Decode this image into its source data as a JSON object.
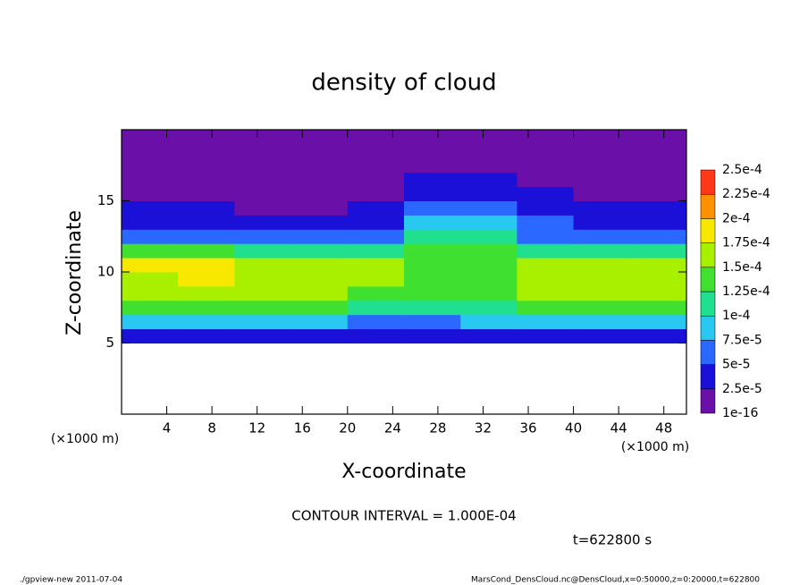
{
  "chart_data": {
    "type": "contour",
    "title": "density of cloud",
    "x_label": "X-coordinate",
    "y_label": "Z-coordinate",
    "x_unit": "(×1000 m)",
    "y_unit": "(×1000 m)",
    "annotation": "CONTOUR INTERVAL = 1.000E-04",
    "time_label": "t=622800 s",
    "footer_left": "./gpview-new  2011-07-04",
    "footer_right": "MarsCond_DensCloud.nc@DensCloud,x=0:50000,z=0:20000,t=622800",
    "xlim": [
      0,
      50
    ],
    "ylim": [
      0,
      20
    ],
    "xticks": [
      4,
      8,
      12,
      16,
      20,
      24,
      28,
      32,
      36,
      40,
      44,
      48
    ],
    "yticks": [
      5,
      10,
      15
    ],
    "x": [
      2.5,
      7.5,
      12.5,
      17.5,
      22.5,
      27.5,
      32.5,
      37.5,
      42.5,
      47.5
    ],
    "z": [
      5.5,
      6.5,
      7.5,
      8.5,
      9.5,
      10.5,
      11.5,
      12.5,
      13.5,
      14.5,
      15.5,
      16.5,
      17.5,
      18.5,
      19.5
    ],
    "values": [
      [
        4e-05,
        4e-05,
        4e-05,
        4e-05,
        3e-05,
        4e-05,
        4e-05,
        4e-05,
        4e-05,
        4e-05
      ],
      [
        8e-05,
        8e-05,
        8e-05,
        8e-05,
        6e-05,
        6e-05,
        8e-05,
        8e-05,
        8e-05,
        8e-05
      ],
      [
        0.00013,
        0.00013,
        0.00013,
        0.000125,
        0.00011,
        0.00012,
        0.00012,
        0.000125,
        0.00013,
        0.00013
      ],
      [
        0.00016,
        0.00016,
        0.000155,
        0.00015,
        0.00014,
        0.00014,
        0.00014,
        0.00015,
        0.00016,
        0.00016
      ],
      [
        0.00017,
        0.000175,
        0.00017,
        0.000155,
        0.00015,
        0.000135,
        0.00013,
        0.00015,
        0.00016,
        0.00016
      ],
      [
        0.000175,
        0.00018,
        0.00017,
        0.00016,
        0.00016,
        0.000135,
        0.00013,
        0.00015,
        0.00016,
        0.00016
      ],
      [
        0.00013,
        0.000135,
        0.00012,
        0.00011,
        0.00012,
        0.00013,
        0.00013,
        0.00012,
        0.00011,
        0.00011
      ],
      [
        5e-05,
        5e-05,
        5e-05,
        5e-05,
        6e-05,
        0.00011,
        0.00011,
        7e-05,
        6e-05,
        6e-05
      ],
      [
        3e-05,
        3e-05,
        3e-05,
        3e-05,
        4e-05,
        9e-05,
        9e-05,
        5e-05,
        4e-05,
        4e-05
      ],
      [
        2.5e-05,
        2.5e-05,
        2e-05,
        2e-05,
        3e-05,
        7e-05,
        7e-05,
        4e-05,
        3e-05,
        3e-05
      ],
      [
        2e-05,
        2e-05,
        2e-05,
        2e-05,
        2e-05,
        4e-05,
        4e-05,
        2.5e-05,
        2e-05,
        2e-05
      ],
      [
        1.5e-05,
        1.5e-05,
        1e-05,
        1e-05,
        1.5e-05,
        2.5e-05,
        2.5e-05,
        1.5e-05,
        1e-05,
        1e-05
      ],
      [
        1e-05,
        1e-05,
        1e-05,
        1e-05,
        1e-05,
        1e-05,
        1e-05,
        1e-05,
        1e-05,
        1e-05
      ],
      [
        1e-05,
        1e-05,
        1e-05,
        1e-05,
        1e-05,
        1e-05,
        1e-05,
        1e-05,
        1e-05,
        1e-05
      ],
      [
        1e-05,
        1e-05,
        1e-05,
        1e-05,
        1e-05,
        1e-05,
        1e-05,
        1e-05,
        1e-05,
        1e-05
      ]
    ],
    "levels": [
      {
        "value": 1e-16,
        "label": "1e-16"
      },
      {
        "value": 2.5e-05,
        "label": "2.5e-5"
      },
      {
        "value": 5e-05,
        "label": "5e-5"
      },
      {
        "value": 7.5e-05,
        "label": "7.5e-5"
      },
      {
        "value": 0.0001,
        "label": "1e-4"
      },
      {
        "value": 0.000125,
        "label": "1.25e-4"
      },
      {
        "value": 0.00015,
        "label": "1.5e-4"
      },
      {
        "value": 0.000175,
        "label": "1.75e-4"
      },
      {
        "value": 0.0002,
        "label": "2e-4"
      },
      {
        "value": 0.000225,
        "label": "2.25e-4"
      },
      {
        "value": 0.00025,
        "label": "2.5e-4"
      }
    ],
    "colors": [
      "#6a10a8",
      "#1a10d8",
      "#2a68ff",
      "#28c8f0",
      "#20e090",
      "#40e030",
      "#a8f000",
      "#f8e800",
      "#ff9000",
      "#ff3818"
    ]
  }
}
